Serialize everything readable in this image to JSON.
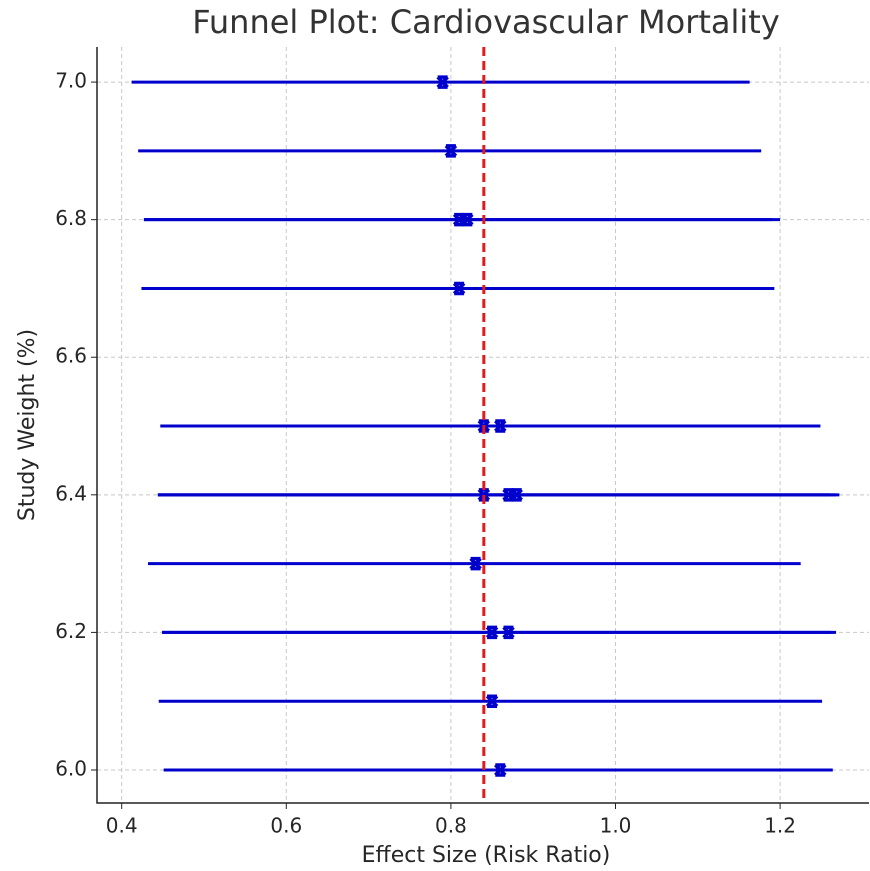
{
  "chart_data": {
    "type": "errorbar",
    "title": "Funnel Plot: Cardiovascular Mortality",
    "xlabel": "Effect Size (Risk Ratio)",
    "ylabel": "Study Weight (%)",
    "x": [
      0.86,
      0.85,
      0.85,
      0.87,
      0.83,
      0.84,
      0.87,
      0.88,
      0.84,
      0.86,
      0.81,
      0.81,
      0.82,
      0.8,
      0.79
    ],
    "values": [
      6.0,
      6.1,
      6.2,
      6.2,
      6.3,
      6.4,
      6.4,
      6.4,
      6.5,
      6.5,
      6.7,
      6.8,
      6.8,
      6.9,
      7.0
    ],
    "lower": [
      0.451,
      0.445,
      0.449,
      0.449,
      0.432,
      0.444,
      0.444,
      0.444,
      0.447,
      0.447,
      0.424,
      0.427,
      0.427,
      0.42,
      0.412
    ],
    "upper": [
      1.264,
      1.251,
      1.262,
      1.268,
      1.225,
      1.26,
      1.268,
      1.272,
      1.24,
      1.249,
      1.193,
      1.19,
      1.2,
      1.177,
      1.163
    ],
    "color": "#0000cc",
    "reference_line": {
      "value": 0.84,
      "color": "#e31a1c"
    },
    "xlim": [
      0.37,
      1.308
    ],
    "ylim": [
      5.952,
      7.051
    ],
    "xticks": [
      0.4,
      0.6,
      0.8,
      {
        "value": 1,
        "label": "1.0"
      },
      1.2
    ],
    "yticks": [
      {
        "value": 6,
        "label": "6.0"
      },
      6.2,
      6.4,
      6.6,
      6.8,
      {
        "value": 7,
        "label": "7.0"
      }
    ],
    "grid": true
  }
}
